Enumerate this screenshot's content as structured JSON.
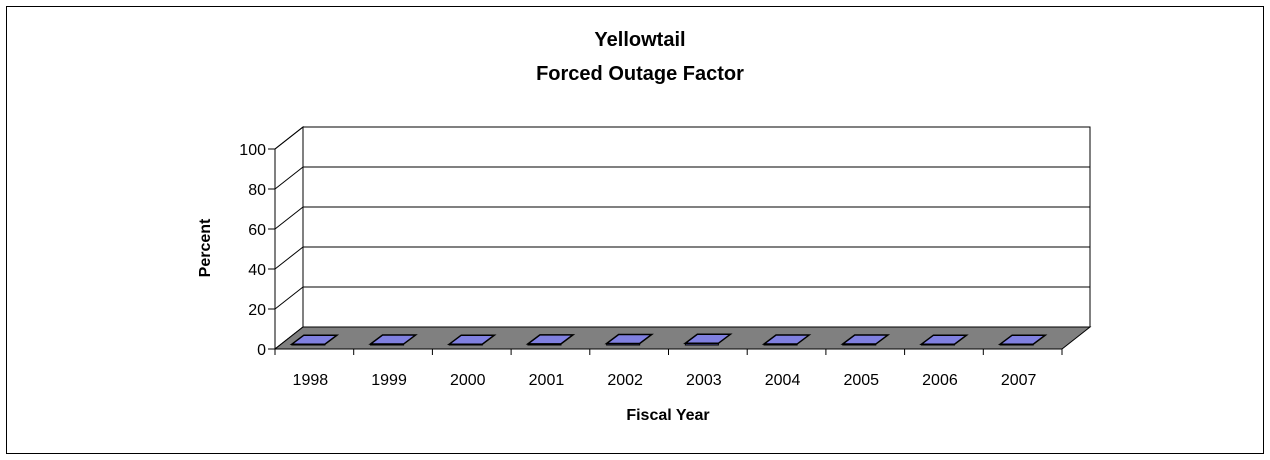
{
  "chart_data": {
    "type": "bar",
    "title": "Yellowtail",
    "subtitle": "Forced Outage Factor",
    "xlabel": "Fiscal Year",
    "ylabel": "Percent",
    "categories": [
      "1998",
      "1999",
      "2000",
      "2001",
      "2002",
      "2003",
      "2004",
      "2005",
      "2006",
      "2007"
    ],
    "values": [
      0.2,
      0.5,
      0.2,
      0.6,
      0.8,
      0.9,
      0.5,
      0.5,
      0.2,
      0.2
    ],
    "ylim": [
      0,
      100
    ],
    "yticks": [
      0,
      20,
      40,
      60,
      80,
      100
    ],
    "grid": true,
    "bar_color": "#8080e0",
    "floor_color": "#808080",
    "three_d": true
  }
}
